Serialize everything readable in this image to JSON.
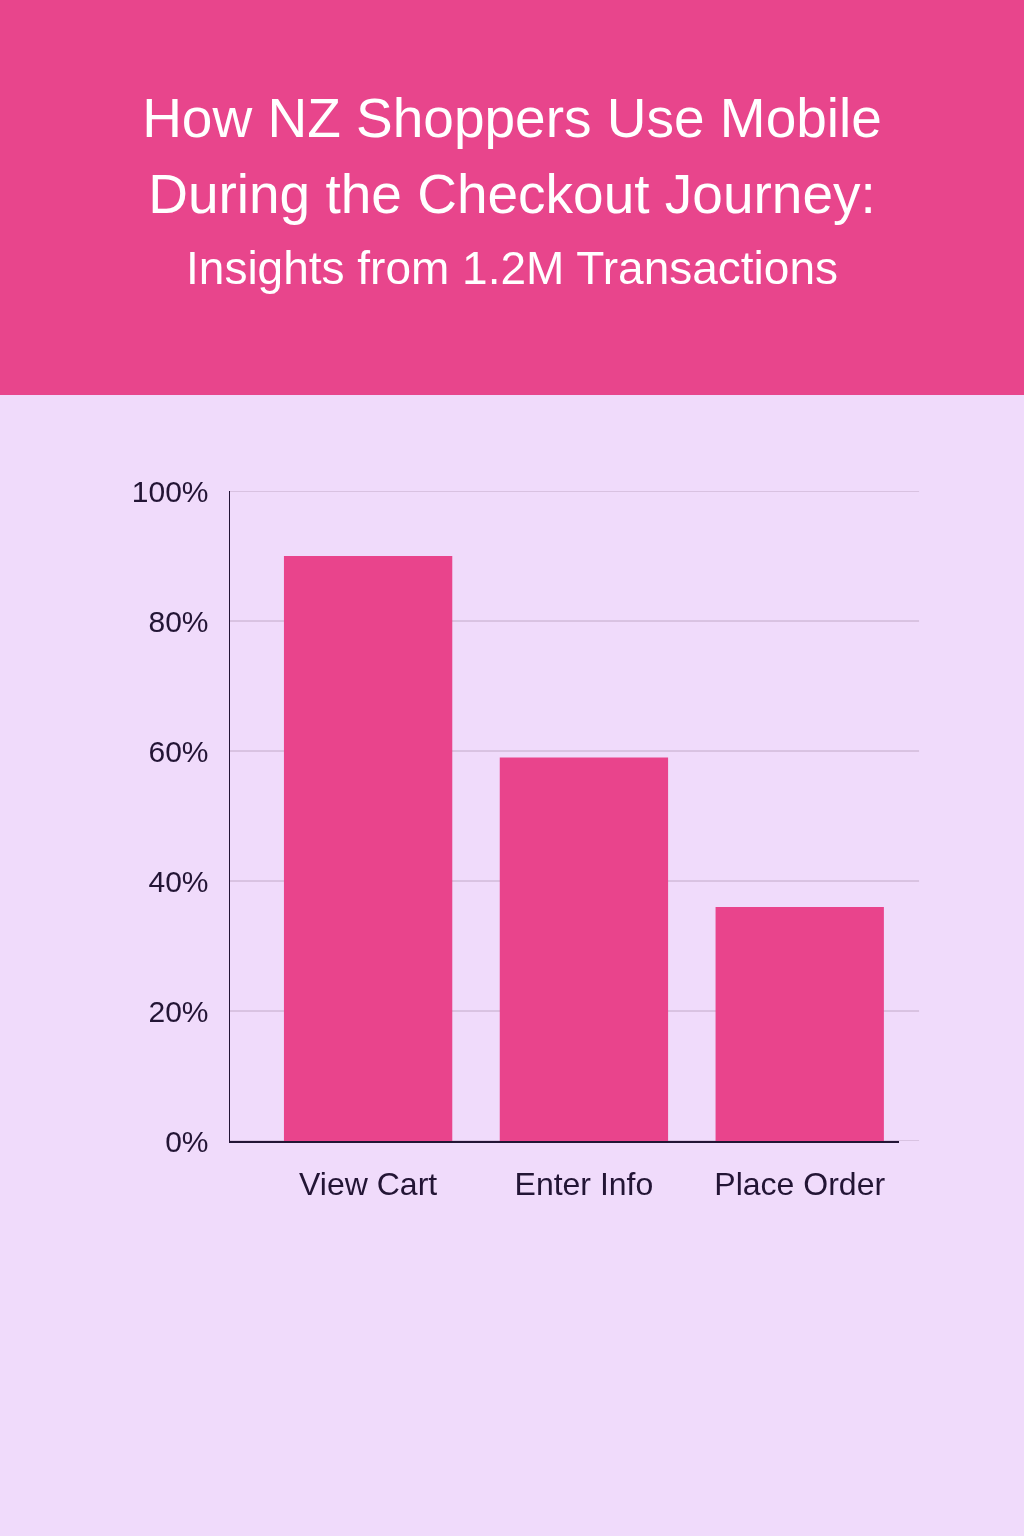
{
  "chart_data": {
    "type": "bar",
    "title": "How NZ Shoppers Use Mobile During the Checkout Journey:",
    "subtitle": "Insights from 1.2M Transactions",
    "categories": [
      "View Cart",
      "Enter Info",
      "Place Order"
    ],
    "values": [
      90,
      59,
      36
    ],
    "color": "#e9448c",
    "ylim": [
      0,
      100
    ],
    "yticks": [
      {
        "value": 0,
        "label": "0%"
      },
      {
        "value": 20,
        "label": "20%"
      },
      {
        "value": 40,
        "label": "40%"
      },
      {
        "value": 60,
        "label": "60%"
      },
      {
        "value": 80,
        "label": "80%"
      },
      {
        "value": 100,
        "label": "100%"
      }
    ],
    "grid": "y"
  }
}
